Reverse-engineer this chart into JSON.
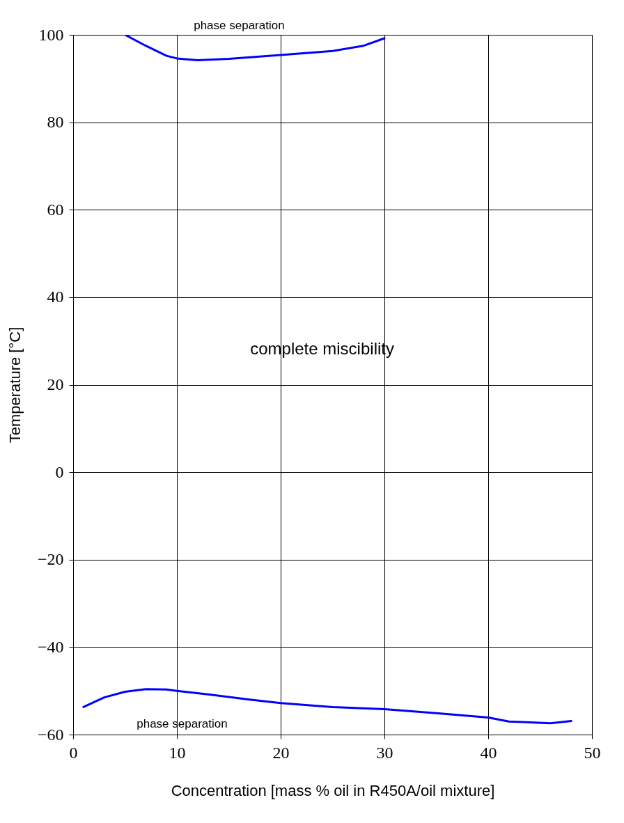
{
  "chart_data": {
    "type": "line",
    "xlabel": "Concentration [mass % oil in R450A/oil mixture]",
    "ylabel": "Temperature [°C]",
    "xlim": [
      0,
      50
    ],
    "xticks": [
      0,
      10,
      20,
      30,
      40,
      50
    ],
    "ylim": [
      -60,
      100
    ],
    "yticks": [
      -60,
      -40,
      -20,
      0,
      20,
      40,
      60,
      80,
      100
    ],
    "grid": true,
    "marker": "none",
    "line_style": "solid",
    "annotations": [
      "phase separation",
      "complete miscibility",
      "phase separation"
    ],
    "series": [
      {
        "color": "#0000ff",
        "x": [
          5,
          7,
          9,
          10,
          12,
          15,
          20,
          25,
          28,
          30
        ],
        "values": [
          100,
          97.5,
          95.2,
          94.6,
          94.2,
          94.5,
          95.4,
          96.3,
          97.5,
          99.2
        ]
      },
      {
        "color": "#0000ff",
        "x": [
          1,
          3,
          5,
          7,
          9,
          10,
          13,
          17,
          20,
          25,
          30,
          35,
          40,
          42,
          46,
          48
        ],
        "values": [
          -53.7,
          -51.5,
          -50.2,
          -49.6,
          -49.7,
          -50,
          -50.8,
          -52,
          -52.8,
          -53.7,
          -54.2,
          -55.1,
          -56.1,
          -57,
          -57.4,
          -56.9
        ]
      }
    ]
  }
}
